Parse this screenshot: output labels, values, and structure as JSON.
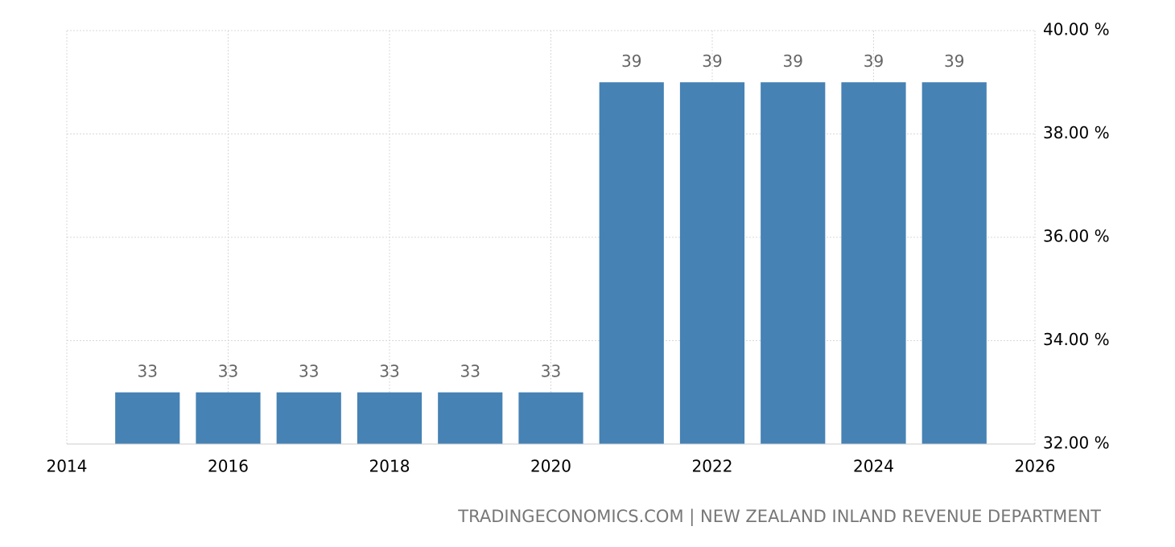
{
  "chart_data": {
    "type": "bar",
    "x": [
      2015,
      2016,
      2017,
      2018,
      2019,
      2020,
      2021,
      2022,
      2023,
      2024,
      2025
    ],
    "values": [
      33,
      33,
      33,
      33,
      33,
      33,
      39,
      39,
      39,
      39,
      39
    ],
    "color": "#4682b4",
    "xlim": [
      2014,
      2026
    ],
    "xticks": [
      2014,
      2016,
      2018,
      2020,
      2022,
      2024,
      2026
    ],
    "ylim": [
      32,
      40
    ],
    "yticks": [
      {
        "value": 32,
        "label": "32.00 %"
      },
      {
        "value": 34,
        "label": "34.00 %"
      },
      {
        "value": 36,
        "label": "36.00 %"
      },
      {
        "value": 38,
        "label": "38.00 %"
      },
      {
        "value": 40,
        "label": "40.00 %"
      }
    ],
    "grid": true,
    "source": "TRADINGECONOMICS.COM | NEW ZEALAND INLAND REVENUE DEPARTMENT"
  }
}
